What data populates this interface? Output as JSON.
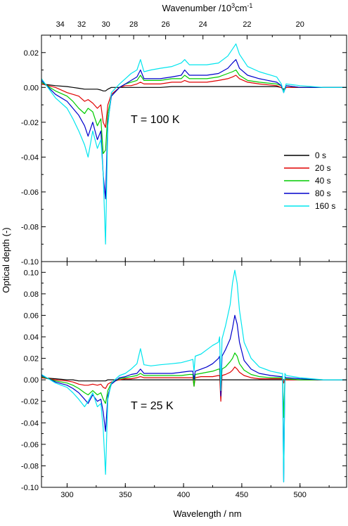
{
  "chart_data": {
    "type": "line",
    "xlabel": "Wavelength / nm",
    "x2label_main": "Wavenumber /10",
    "x2label_sup": "3",
    "x2label_unit": "cm",
    "x2label_unit_sup": "-1",
    "ylabel": "Optical depth (-)",
    "xlim": [
      278,
      540
    ],
    "x_ticks": [
      300,
      350,
      400,
      450,
      500
    ],
    "x_tick_labels": [
      "300",
      "350",
      "400",
      "450",
      "500"
    ],
    "x2_ticks": [
      34,
      32,
      30,
      28,
      26,
      24,
      22,
      20
    ],
    "x2_tick_labels": [
      "34",
      "32",
      "30",
      "28",
      "26",
      "24",
      "22",
      "20"
    ],
    "legend_position": "right",
    "series_colors": [
      "#000000",
      "#e00000",
      "#00cc00",
      "#0000cc",
      "#00e5ee"
    ],
    "legend": [
      "0 s",
      "20 s",
      "40 s",
      "80 s",
      "160 s"
    ],
    "panels": [
      {
        "annotation": "T = 100 K",
        "ylim": [
          -0.1,
          0.03
        ],
        "y_ticks": [
          0.02,
          0.0,
          -0.02,
          -0.04,
          -0.06,
          -0.08,
          -0.1
        ],
        "y_tick_labels": [
          "0.02",
          "0.00",
          "-0.02",
          "-0.04",
          "-0.06",
          "-0.08",
          "-0.10"
        ],
        "x": [
          278,
          290,
          300,
          305,
          310,
          315,
          318,
          322,
          326,
          329,
          331,
          333,
          335,
          338,
          345,
          350,
          355,
          360,
          363,
          366,
          372,
          380,
          390,
          398,
          401,
          405,
          412,
          420,
          430,
          438,
          442,
          445,
          448,
          455,
          465,
          480,
          484,
          486,
          488,
          500,
          520,
          540
        ],
        "series": [
          {
            "values": [
              0.002,
              0.001,
              0.0005,
              0.0,
              -0.0005,
              -0.001,
              -0.001,
              -0.001,
              -0.001,
              -0.0015,
              -0.002,
              -0.002,
              -0.001,
              0.0,
              0.0,
              0.0,
              0.0,
              0.0,
              0.0,
              0.0,
              0.0,
              0.0,
              0.0005,
              0.0005,
              0.0005,
              0.0005,
              0.0005,
              0.0005,
              0.0005,
              0.0005,
              0.0005,
              0.0005,
              0.0005,
              0.0005,
              0.0005,
              0.0005,
              0.0,
              -0.001,
              0.0,
              0.0,
              0.0,
              0.0
            ]
          },
          {
            "values": [
              0.002,
              0.0,
              -0.003,
              -0.004,
              -0.005,
              -0.008,
              -0.007,
              -0.009,
              -0.012,
              -0.01,
              -0.02,
              -0.023,
              -0.01,
              -0.004,
              0.0,
              0.001,
              0.001,
              0.002,
              0.003,
              0.002,
              0.002,
              0.002,
              0.003,
              0.003,
              0.004,
              0.003,
              0.003,
              0.003,
              0.004,
              0.005,
              0.006,
              0.007,
              0.005,
              0.003,
              0.002,
              0.001,
              0.0,
              -0.002,
              0.0,
              0.0,
              0.0,
              0.0
            ]
          },
          {
            "values": [
              0.003,
              -0.002,
              -0.005,
              -0.008,
              -0.012,
              -0.015,
              -0.012,
              -0.014,
              -0.022,
              -0.018,
              -0.038,
              -0.036,
              -0.015,
              -0.005,
              0.0,
              0.002,
              0.003,
              0.004,
              0.007,
              0.004,
              0.004,
              0.004,
              0.005,
              0.005,
              0.007,
              0.005,
              0.005,
              0.005,
              0.006,
              0.008,
              0.009,
              0.01,
              0.007,
              0.004,
              0.003,
              0.002,
              0.001,
              -0.002,
              0.001,
              0.0,
              0.0,
              0.0
            ]
          },
          {
            "values": [
              0.004,
              -0.004,
              -0.008,
              -0.012,
              -0.016,
              -0.022,
              -0.028,
              -0.02,
              -0.03,
              -0.025,
              -0.05,
              -0.064,
              -0.02,
              -0.005,
              0.0,
              0.002,
              0.004,
              0.006,
              0.01,
              0.005,
              0.005,
              0.005,
              0.006,
              0.007,
              0.01,
              0.007,
              0.007,
              0.007,
              0.008,
              0.011,
              0.014,
              0.016,
              0.011,
              0.007,
              0.005,
              0.003,
              0.001,
              -0.003,
              0.001,
              0.0,
              0.0,
              0.0
            ]
          },
          {
            "values": [
              0.005,
              -0.006,
              -0.012,
              -0.018,
              -0.025,
              -0.033,
              -0.04,
              -0.025,
              -0.035,
              -0.03,
              -0.05,
              -0.09,
              -0.022,
              -0.003,
              0.002,
              0.005,
              0.008,
              0.01,
              0.016,
              0.009,
              0.01,
              0.011,
              0.012,
              0.014,
              0.016,
              0.013,
              0.013,
              0.013,
              0.014,
              0.018,
              0.022,
              0.025,
              0.019,
              0.012,
              0.009,
              0.006,
              0.002,
              -0.003,
              0.002,
              0.001,
              0.0,
              0.0
            ]
          }
        ]
      },
      {
        "annotation": "T = 25 K",
        "ylim": [
          -0.1,
          0.11
        ],
        "y_ticks": [
          0.1,
          0.08,
          0.06,
          0.04,
          0.02,
          0.0,
          -0.02,
          -0.04,
          -0.06,
          -0.08,
          -0.1
        ],
        "y_tick_labels": [
          "0.10",
          "0.08",
          "0.06",
          "0.04",
          "0.02",
          "0.00",
          "-0.02",
          "-0.04",
          "-0.06",
          "-0.08",
          "-0.10"
        ],
        "x": [
          278,
          290,
          300,
          305,
          310,
          315,
          318,
          322,
          326,
          329,
          331,
          333,
          335,
          338,
          345,
          350,
          355,
          360,
          363,
          366,
          372,
          380,
          390,
          398,
          405,
          408,
          409,
          410,
          415,
          420,
          425,
          430,
          431,
          432,
          433,
          436,
          440,
          442,
          444,
          446,
          448,
          452,
          458,
          465,
          475,
          484,
          485,
          486,
          487,
          488,
          500,
          520,
          540
        ],
        "series": [
          {
            "values": [
              0.002,
              0.001,
              0.0,
              0.0,
              -0.001,
              -0.001,
              -0.001,
              -0.001,
              -0.001,
              -0.001,
              -0.001,
              -0.001,
              0.0,
              0.0,
              0.0,
              0.0,
              0.0,
              0.0,
              0.0,
              0.0,
              0.0,
              0.0,
              0.0,
              0.0,
              0.0,
              0.0,
              0.0,
              0.0,
              0.0,
              0.0,
              0.0,
              0.0,
              0.0,
              -0.001,
              0.0,
              0.0,
              0.0,
              0.0,
              0.0,
              0.0,
              0.0,
              0.0,
              0.0,
              0.0,
              0.0,
              0.0,
              0.0,
              0.0,
              0.0,
              0.0,
              0.0,
              0.0,
              0.0
            ]
          },
          {
            "values": [
              0.002,
              0.0,
              -0.001,
              -0.002,
              -0.004,
              -0.005,
              -0.005,
              -0.004,
              -0.005,
              -0.004,
              -0.007,
              -0.008,
              -0.004,
              -0.002,
              0.0,
              0.001,
              0.001,
              0.002,
              0.003,
              0.002,
              0.002,
              0.002,
              0.002,
              0.002,
              0.002,
              0.002,
              -0.006,
              0.002,
              0.003,
              0.003,
              0.003,
              0.004,
              0.004,
              -0.02,
              0.004,
              0.005,
              0.007,
              0.009,
              0.012,
              0.01,
              0.007,
              0.004,
              0.002,
              0.001,
              0.001,
              0.001,
              0.001,
              -0.003,
              0.001,
              0.0,
              0.0,
              0.0,
              0.0
            ]
          },
          {
            "values": [
              0.003,
              -0.001,
              -0.003,
              -0.005,
              -0.008,
              -0.012,
              -0.014,
              -0.01,
              -0.014,
              -0.012,
              -0.018,
              -0.022,
              -0.01,
              -0.003,
              0.001,
              0.002,
              0.003,
              0.004,
              0.006,
              0.004,
              0.004,
              0.004,
              0.004,
              0.004,
              0.005,
              0.005,
              -0.006,
              0.005,
              0.006,
              0.007,
              0.008,
              0.01,
              0.01,
              -0.01,
              0.01,
              0.012,
              0.017,
              0.02,
              0.025,
              0.022,
              0.015,
              0.009,
              0.005,
              0.003,
              0.002,
              0.002,
              0.002,
              -0.035,
              0.002,
              0.001,
              0.0,
              0.0,
              0.0
            ]
          },
          {
            "values": [
              0.004,
              -0.002,
              -0.005,
              -0.008,
              -0.012,
              -0.018,
              -0.022,
              -0.014,
              -0.02,
              -0.018,
              -0.03,
              -0.048,
              -0.015,
              -0.004,
              0.002,
              0.003,
              0.005,
              0.006,
              0.01,
              0.006,
              0.006,
              0.006,
              0.006,
              0.007,
              0.008,
              0.008,
              0.0,
              0.008,
              0.01,
              0.012,
              0.015,
              0.02,
              0.022,
              -0.015,
              0.022,
              0.028,
              0.038,
              0.048,
              0.06,
              0.052,
              0.035,
              0.018,
              0.01,
              0.006,
              0.004,
              0.003,
              0.003,
              -0.095,
              0.003,
              0.002,
              0.001,
              0.0,
              0.0
            ]
          },
          {
            "values": [
              0.005,
              -0.003,
              -0.007,
              -0.012,
              -0.018,
              -0.025,
              -0.02,
              -0.012,
              -0.025,
              -0.022,
              -0.045,
              -0.088,
              -0.018,
              -0.003,
              0.004,
              0.006,
              0.01,
              0.015,
              0.029,
              0.014,
              0.013,
              0.014,
              0.015,
              0.016,
              0.018,
              0.019,
              0.008,
              0.022,
              0.024,
              0.028,
              0.032,
              0.035,
              0.04,
              -0.01,
              0.038,
              0.05,
              0.07,
              0.09,
              0.102,
              0.09,
              0.065,
              0.035,
              0.02,
              0.012,
              0.008,
              0.006,
              0.006,
              -0.095,
              0.006,
              0.004,
              0.002,
              0.0,
              0.0
            ]
          }
        ]
      }
    ]
  }
}
